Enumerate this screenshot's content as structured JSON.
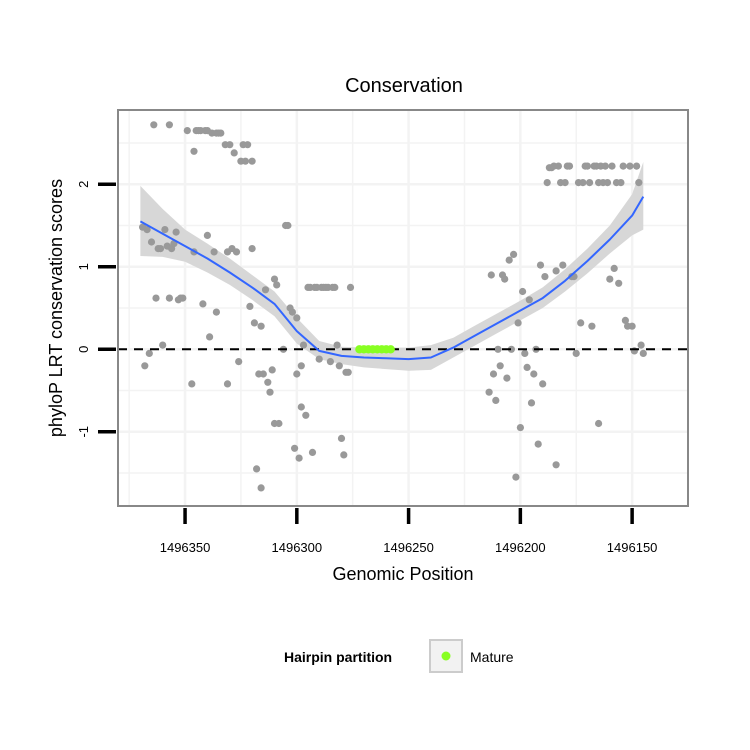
{
  "chart_data": {
    "type": "scatter",
    "title": "Conservation",
    "xlabel": "Genomic Position",
    "ylabel": "phyloP LRT conservation scores",
    "x_reversed": true,
    "xlim": [
      1496380,
      1496125
    ],
    "ylim": [
      -1.9,
      2.9
    ],
    "x_ticks": [
      1496350,
      1496300,
      1496250,
      1496200,
      1496150
    ],
    "y_ticks": [
      -1,
      0,
      1,
      2
    ],
    "y_tick_labels": [
      "-1",
      "0",
      "1",
      "2"
    ],
    "reference_line": {
      "y": 0,
      "style": "dashed"
    },
    "colors": {
      "points": "#999999",
      "mature": "#88ff22",
      "smooth": "#3366ff",
      "ribbon": "#d5d5d5",
      "panel_border": "#888888",
      "grid": "#f3f3f3"
    },
    "legend": {
      "position": "bottom",
      "title": "Hairpin partition",
      "entries": [
        {
          "label": "Mature",
          "color": "#88ff22"
        }
      ]
    },
    "points": [
      [
        1496368,
        -0.2
      ],
      [
        1496366,
        -0.05
      ],
      [
        1496369,
        1.48
      ],
      [
        1496367,
        1.45
      ],
      [
        1496365,
        1.3
      ],
      [
        1496364,
        2.72
      ],
      [
        1496363,
        0.62
      ],
      [
        1496362,
        1.22
      ],
      [
        1496361,
        1.22
      ],
      [
        1496360,
        0.05
      ],
      [
        1496359,
        1.45
      ],
      [
        1496358,
        1.25
      ],
      [
        1496357,
        0.62
      ],
      [
        1496357,
        2.72
      ],
      [
        1496356,
        1.22
      ],
      [
        1496355,
        1.28
      ],
      [
        1496354,
        1.42
      ],
      [
        1496353,
        0.6
      ],
      [
        1496352,
        0.62
      ],
      [
        1496351,
        0.62
      ],
      [
        1496349,
        2.65
      ],
      [
        1496347,
        -0.42
      ],
      [
        1496346,
        2.4
      ],
      [
        1496346,
        1.18
      ],
      [
        1496345,
        2.65
      ],
      [
        1496344,
        2.65
      ],
      [
        1496343,
        2.65
      ],
      [
        1496342,
        0.55
      ],
      [
        1496341,
        2.65
      ],
      [
        1496340,
        1.38
      ],
      [
        1496340,
        2.65
      ],
      [
        1496339,
        0.15
      ],
      [
        1496338,
        2.62
      ],
      [
        1496337,
        1.18
      ],
      [
        1496336,
        0.45
      ],
      [
        1496336,
        2.62
      ],
      [
        1496335,
        2.62
      ],
      [
        1496334,
        2.62
      ],
      [
        1496332,
        2.48
      ],
      [
        1496331,
        -0.42
      ],
      [
        1496331,
        1.18
      ],
      [
        1496330,
        2.48
      ],
      [
        1496329,
        1.22
      ],
      [
        1496328,
        2.38
      ],
      [
        1496327,
        1.18
      ],
      [
        1496326,
        -0.15
      ],
      [
        1496325,
        2.28
      ],
      [
        1496324,
        2.48
      ],
      [
        1496323,
        2.28
      ],
      [
        1496322,
        2.48
      ],
      [
        1496321,
        0.52
      ],
      [
        1496320,
        2.28
      ],
      [
        1496320,
        1.22
      ],
      [
        1496319,
        0.32
      ],
      [
        1496318,
        -1.45
      ],
      [
        1496317,
        -0.3
      ],
      [
        1496316,
        -1.68
      ],
      [
        1496316,
        0.28
      ],
      [
        1496315,
        -0.3
      ],
      [
        1496314,
        0.72
      ],
      [
        1496313,
        -0.4
      ],
      [
        1496312,
        -0.52
      ],
      [
        1496311,
        -0.25
      ],
      [
        1496310,
        0.85
      ],
      [
        1496310,
        -0.9
      ],
      [
        1496309,
        0.78
      ],
      [
        1496308,
        -0.9
      ],
      [
        1496306,
        0.0
      ],
      [
        1496305,
        1.5
      ],
      [
        1496304,
        1.5
      ],
      [
        1496303,
        0.5
      ],
      [
        1496302,
        0.45
      ],
      [
        1496301,
        -1.2
      ],
      [
        1496300,
        -0.3
      ],
      [
        1496300,
        0.38
      ],
      [
        1496299,
        -1.32
      ],
      [
        1496298,
        -0.7
      ],
      [
        1496298,
        -0.2
      ],
      [
        1496297,
        0.05
      ],
      [
        1496296,
        -0.8
      ],
      [
        1496295,
        0.75
      ],
      [
        1496294,
        0.75
      ],
      [
        1496293,
        -1.25
      ],
      [
        1496292,
        0.75
      ],
      [
        1496291,
        0.75
      ],
      [
        1496290,
        -0.12
      ],
      [
        1496289,
        0.75
      ],
      [
        1496288,
        0.75
      ],
      [
        1496287,
        0.75
      ],
      [
        1496286,
        0.75
      ],
      [
        1496285,
        -0.15
      ],
      [
        1496284,
        0.75
      ],
      [
        1496283,
        0.75
      ],
      [
        1496282,
        0.05
      ],
      [
        1496281,
        -0.2
      ],
      [
        1496280,
        -1.08
      ],
      [
        1496279,
        -1.28
      ],
      [
        1496278,
        -0.28
      ],
      [
        1496277,
        -0.28
      ],
      [
        1496276,
        0.75
      ],
      [
        1496214,
        -0.52
      ],
      [
        1496212,
        -0.3
      ],
      [
        1496213,
        0.9
      ],
      [
        1496211,
        -0.62
      ],
      [
        1496210,
        0.0
      ],
      [
        1496209,
        -0.2
      ],
      [
        1496208,
        0.9
      ],
      [
        1496207,
        0.85
      ],
      [
        1496206,
        -0.35
      ],
      [
        1496205,
        1.08
      ],
      [
        1496204,
        0.0
      ],
      [
        1496203,
        1.15
      ],
      [
        1496202,
        -1.55
      ],
      [
        1496201,
        0.32
      ],
      [
        1496200,
        -0.95
      ],
      [
        1496199,
        0.7
      ],
      [
        1496198,
        -0.05
      ],
      [
        1496197,
        -0.22
      ],
      [
        1496196,
        0.6
      ],
      [
        1496195,
        -0.65
      ],
      [
        1496194,
        -0.3
      ],
      [
        1496193,
        0.0
      ],
      [
        1496192,
        -1.15
      ],
      [
        1496191,
        1.02
      ],
      [
        1496190,
        -0.42
      ],
      [
        1496189,
        0.88
      ],
      [
        1496188,
        2.02
      ],
      [
        1496187,
        2.2
      ],
      [
        1496186,
        2.2
      ],
      [
        1496185,
        2.22
      ],
      [
        1496184,
        -1.4
      ],
      [
        1496184,
        0.95
      ],
      [
        1496183,
        2.22
      ],
      [
        1496182,
        2.02
      ],
      [
        1496181,
        1.02
      ],
      [
        1496180,
        2.02
      ],
      [
        1496179,
        2.22
      ],
      [
        1496178,
        2.22
      ],
      [
        1496177,
        0.88
      ],
      [
        1496176,
        0.88
      ],
      [
        1496175,
        -0.05
      ],
      [
        1496174,
        2.02
      ],
      [
        1496173,
        0.32
      ],
      [
        1496172,
        2.02
      ],
      [
        1496171,
        2.22
      ],
      [
        1496170,
        2.22
      ],
      [
        1496169,
        2.02
      ],
      [
        1496168,
        0.28
      ],
      [
        1496167,
        2.22
      ],
      [
        1496166,
        2.22
      ],
      [
        1496165,
        -0.9
      ],
      [
        1496165,
        2.02
      ],
      [
        1496164,
        2.22
      ],
      [
        1496163,
        2.02
      ],
      [
        1496162,
        2.22
      ],
      [
        1496161,
        2.02
      ],
      [
        1496160,
        0.85
      ],
      [
        1496159,
        2.22
      ],
      [
        1496158,
        0.98
      ],
      [
        1496157,
        2.02
      ],
      [
        1496156,
        0.8
      ],
      [
        1496155,
        2.02
      ],
      [
        1496154,
        2.22
      ],
      [
        1496153,
        0.35
      ],
      [
        1496152,
        0.28
      ],
      [
        1496151,
        2.22
      ],
      [
        1496150,
        0.28
      ],
      [
        1496149,
        -0.02
      ],
      [
        1496148,
        2.22
      ],
      [
        1496147,
        2.02
      ],
      [
        1496146,
        0.05
      ],
      [
        1496145,
        -0.05
      ]
    ],
    "mature_points": [
      [
        1496272,
        0.0
      ],
      [
        1496270,
        0.0
      ],
      [
        1496268,
        0.0
      ],
      [
        1496266,
        0.0
      ],
      [
        1496264,
        0.0
      ],
      [
        1496262,
        0.0
      ],
      [
        1496260,
        0.0
      ],
      [
        1496258,
        0.0
      ]
    ],
    "smooth_line": {
      "x": [
        1496370,
        1496360,
        1496350,
        1496340,
        1496330,
        1496320,
        1496310,
        1496300,
        1496290,
        1496280,
        1496270,
        1496260,
        1496250,
        1496240,
        1496230,
        1496220,
        1496210,
        1496200,
        1496190,
        1496180,
        1496170,
        1496160,
        1496150,
        1496145
      ],
      "y": [
        1.55,
        1.4,
        1.25,
        1.1,
        0.93,
        0.75,
        0.55,
        0.22,
        -0.02,
        -0.08,
        -0.1,
        -0.11,
        -0.12,
        -0.1,
        0.02,
        0.17,
        0.32,
        0.47,
        0.62,
        0.83,
        1.07,
        1.33,
        1.62,
        1.85
      ],
      "lo": [
        1.13,
        1.12,
        1.06,
        0.93,
        0.78,
        0.6,
        0.4,
        0.07,
        -0.12,
        -0.18,
        -0.22,
        -0.24,
        -0.26,
        -0.25,
        -0.1,
        0.05,
        0.2,
        0.35,
        0.5,
        0.7,
        0.92,
        1.16,
        1.38,
        1.45
      ],
      "hi": [
        1.98,
        1.7,
        1.45,
        1.28,
        1.1,
        0.9,
        0.7,
        0.38,
        0.1,
        0.03,
        0.02,
        0.02,
        0.02,
        0.05,
        0.14,
        0.29,
        0.44,
        0.59,
        0.75,
        0.97,
        1.22,
        1.5,
        1.88,
        2.27
      ]
    }
  }
}
